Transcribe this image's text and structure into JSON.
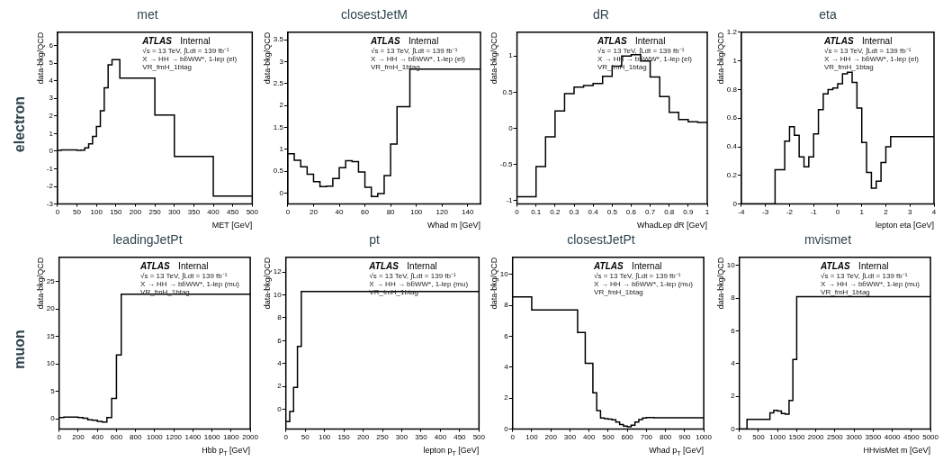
{
  "chart_data": [
    {
      "type": "histogram",
      "title": "met",
      "xlabel": "MET [GeV]",
      "ylabel": "data-bkg/QCD",
      "color": "#000000",
      "bins": [
        0,
        10,
        20,
        30,
        40,
        50,
        60,
        70,
        80,
        90,
        100,
        110,
        120,
        130,
        140,
        160,
        250,
        300,
        400,
        500
      ],
      "values": [
        0.05,
        0.07,
        0.07,
        0.07,
        0.07,
        0.05,
        0.06,
        0.18,
        0.42,
        0.84,
        1.4,
        2.3,
        3.6,
        4.9,
        5.2,
        4.15,
        2.05,
        -0.3,
        -2.55
      ],
      "xlim": [
        0,
        500
      ],
      "xticks": [
        0,
        50,
        100,
        150,
        200,
        250,
        300,
        350,
        400,
        450,
        500
      ],
      "ylim": [
        -3,
        6.75
      ],
      "yticks": [
        -3,
        -2,
        -1,
        0,
        1,
        2,
        3,
        4,
        5,
        6
      ],
      "annotations": [
        "ATLAS",
        "Internal",
        "√s = 13 TeV, ∫Ldt = 139 fb⁻¹",
        "X → HH → bb̄WW*, 1-lep (el)",
        "VR_fmH_1btag",
        "electron"
      ]
    },
    {
      "type": "histogram",
      "title": "closestJetM",
      "xlabel": "Whad m [GeV]",
      "ylabel": "data-bkg/QCD",
      "color": "#000000",
      "bins": [
        0,
        5,
        10,
        15,
        20,
        25,
        30,
        35,
        40,
        45,
        50,
        55,
        60,
        65,
        70,
        75,
        80,
        85,
        95,
        150
      ],
      "values": [
        0.9,
        0.75,
        0.6,
        0.43,
        0.26,
        0.15,
        0.16,
        0.33,
        0.58,
        0.74,
        0.72,
        0.48,
        0.13,
        -0.08,
        -0.01,
        0.4,
        1.12,
        1.97,
        2.83
      ],
      "xlim": [
        0,
        150
      ],
      "xticks": [
        0,
        20,
        40,
        60,
        80,
        100,
        120,
        140
      ],
      "ylim": [
        -0.25,
        3.67
      ],
      "yticks": [
        0,
        0.5,
        1,
        1.5,
        2,
        2.5,
        3,
        3.5
      ],
      "annotations": [
        "ATLAS",
        "Internal",
        "√s = 13 TeV, ∫Ldt = 139 fb⁻¹",
        "X → HH → bb̄WW*, 1-lep (el)",
        "VR_fmH_1btag"
      ]
    },
    {
      "type": "histogram",
      "title": "dR",
      "xlabel": "WhadLep dR [GeV]",
      "ylabel": "data-bkg/QCD",
      "color": "#000000",
      "bins": [
        0,
        0.1,
        0.15,
        0.2,
        0.25,
        0.3,
        0.35,
        0.4,
        0.45,
        0.5,
        0.55,
        0.6,
        0.65,
        0.7,
        0.75,
        0.8,
        0.85,
        0.9,
        0.95,
        1
      ],
      "values": [
        -0.95,
        -0.53,
        -0.12,
        0.24,
        0.48,
        0.57,
        0.59,
        0.62,
        0.72,
        0.86,
        1.0,
        1.02,
        0.93,
        0.71,
        0.44,
        0.22,
        0.12,
        0.09,
        0.08
      ],
      "xlim": [
        0,
        1
      ],
      "xticks": [
        0,
        0.1,
        0.2,
        0.3,
        0.4,
        0.5,
        0.6,
        0.7,
        0.8,
        0.9,
        1
      ],
      "ylim": [
        -1.05,
        1.33
      ],
      "yticks": [
        -1,
        -0.5,
        0,
        0.5,
        1
      ],
      "annotations": [
        "ATLAS",
        "Internal",
        "√s = 13 TeV, ∫Ldt = 139 fb⁻¹",
        "X → HH → bb̄WW*, 1-lep (el)",
        "VR_fmH_1btag"
      ]
    },
    {
      "type": "histogram",
      "title": "eta",
      "xlabel": "lepton eta [GeV]",
      "ylabel": "data-bkg/QCD",
      "color": "#000000",
      "bins": [
        -4,
        -2.6,
        -2.2,
        -2,
        -1.8,
        -1.6,
        -1.4,
        -1.2,
        -1,
        -0.8,
        -0.6,
        -0.4,
        -0.2,
        0,
        0.2,
        0.4,
        0.6,
        0.8,
        1,
        1.2,
        1.4,
        1.6,
        1.8,
        2,
        2.2,
        4
      ],
      "values": [
        0,
        0.24,
        0.44,
        0.54,
        0.48,
        0.33,
        0.26,
        0.33,
        0.49,
        0.66,
        0.77,
        0.8,
        0.81,
        0.84,
        0.91,
        0.92,
        0.85,
        0.67,
        0.43,
        0.22,
        0.11,
        0.16,
        0.29,
        0.4,
        0.47
      ],
      "xlim": [
        -4,
        4
      ],
      "xticks": [
        -4,
        -3,
        -2,
        -1,
        0,
        1,
        2,
        3,
        4
      ],
      "ylim": [
        0,
        1.2
      ],
      "yticks": [
        0,
        0.2,
        0.4,
        0.6,
        0.8,
        1,
        1.2
      ],
      "annotations": [
        "ATLAS",
        "Internal",
        "√s = 13 TeV, ∫Ldt = 139 fb⁻¹",
        "X → HH → bb̄WW*, 1-lep (el)",
        "VR_fmH_1btag"
      ]
    },
    {
      "type": "histogram",
      "title": "leadingJetPt",
      "xlabel": "Hbb p$_{T}$ [GeV]",
      "ylabel": "data-bkg/QCD",
      "color": "#000000",
      "bins": [
        0,
        50,
        100,
        150,
        200,
        250,
        300,
        350,
        400,
        450,
        500,
        550,
        600,
        650,
        2000
      ],
      "values": [
        0.2,
        0.3,
        0.3,
        0.3,
        0.2,
        0.1,
        -0.2,
        -0.3,
        -0.5,
        -0.6,
        0.2,
        3.7,
        11.6,
        22.7
      ],
      "xlim": [
        0,
        2000
      ],
      "xticks": [
        0,
        200,
        400,
        600,
        800,
        1000,
        1200,
        1400,
        1600,
        1800,
        2000
      ],
      "ylim": [
        -1.9,
        29.4
      ],
      "yticks": [
        0,
        5,
        10,
        15,
        20,
        25
      ],
      "annotations": [
        "ATLAS",
        "Internal",
        "√s = 13 TeV, ∫Ldt = 139 fb⁻¹",
        "X → HH → bb̄WW*, 1-lep (mu)",
        "VR_fmH_1btag",
        "muon"
      ]
    },
    {
      "type": "histogram",
      "title": "pt",
      "xlabel": "lepton p$_{T}$ [GeV]",
      "ylabel": "data-bkg/QCD",
      "color": "#000000",
      "bins": [
        0,
        10,
        20,
        30,
        40,
        500
      ],
      "values": [
        -1.1,
        -0.2,
        1.9,
        5.5,
        10.3
      ],
      "xlim": [
        0,
        500
      ],
      "xticks": [
        0,
        50,
        100,
        150,
        200,
        250,
        300,
        350,
        400,
        450,
        500
      ],
      "ylim": [
        -1.75,
        13.3
      ],
      "yticks": [
        0,
        2,
        4,
        6,
        8,
        10,
        12
      ],
      "annotations": [
        "ATLAS",
        "Internal",
        "√s = 13 TeV, ∫Ldt = 139 fb⁻¹",
        "X → HH → bb̄WW*, 1-lep (mu)",
        "VR_fmH_1btag"
      ]
    },
    {
      "type": "histogram",
      "title": "closestJetPt",
      "xlabel": "Whad p$_{T}$ [GeV]",
      "ylabel": "data-bkg/QCD",
      "color": "#000000",
      "bins": [
        0,
        100,
        340,
        380,
        420,
        440,
        460,
        480,
        500,
        520,
        540,
        560,
        580,
        600,
        620,
        640,
        660,
        680,
        700,
        740,
        1000
      ],
      "values": [
        8.55,
        7.7,
        6.25,
        4.25,
        2.35,
        1.2,
        0.72,
        0.68,
        0.65,
        0.6,
        0.45,
        0.3,
        0.2,
        0.15,
        0.25,
        0.45,
        0.62,
        0.72,
        0.75,
        0.73
      ],
      "xlim": [
        0,
        1000
      ],
      "xticks": [
        0,
        100,
        200,
        300,
        400,
        500,
        600,
        700,
        800,
        900,
        1000
      ],
      "ylim": [
        0,
        11.1
      ],
      "yticks": [
        0,
        2,
        4,
        6,
        8,
        10
      ],
      "annotations": [
        "ATLAS",
        "Internal",
        "√s = 13 TeV, ∫Ldt = 139 fb⁻¹",
        "X → HH → bb̄WW*, 1-lep (mu)",
        "VR_fmH_1btag"
      ]
    },
    {
      "type": "histogram",
      "title": "mvismet",
      "xlabel": "HHvisMet m [GeV]",
      "ylabel": "data-bkg/QCD",
      "color": "#000000",
      "bins": [
        0,
        200,
        800,
        900,
        1000,
        1100,
        1200,
        1300,
        1400,
        1500,
        5000
      ],
      "values": [
        0,
        0.6,
        1.0,
        1.15,
        1.1,
        0.95,
        0.92,
        1.75,
        4.25,
        8.1
      ],
      "xlim": [
        0,
        5000
      ],
      "xticks": [
        0,
        500,
        1000,
        1500,
        2000,
        2500,
        3000,
        3500,
        4000,
        4500,
        5000
      ],
      "ylim": [
        0,
        10.5
      ],
      "yticks": [
        0,
        2,
        4,
        6,
        8,
        10
      ],
      "annotations": [
        "ATLAS",
        "Internal",
        "√s = 13 TeV, ∫Ldt = 139 fb⁻¹",
        "X → HH → bb̄WW*, 1-lep (mu)",
        "VR_fmH_1btag"
      ]
    }
  ]
}
